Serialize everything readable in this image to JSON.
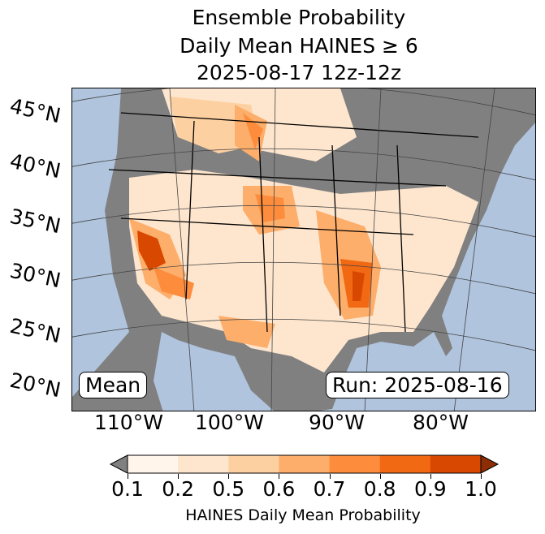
{
  "title": {
    "line1": "Ensemble Probability",
    "line2": "Daily Mean HAINES ≥ 6",
    "line3": "2025-08-17 12z-12z"
  },
  "map": {
    "lat_labels": [
      "45°N",
      "40°N",
      "35°N",
      "30°N",
      "25°N",
      "20°N"
    ],
    "lon_labels": [
      "110°W",
      "100°W",
      "90°W",
      "80°W"
    ],
    "mean_label": "Mean",
    "run_label": "Run: 2025-08-16",
    "colors": {
      "ocean": "#b0c4de",
      "land_below": "#808080"
    }
  },
  "colorbar": {
    "ticks": [
      "0.1",
      "0.2",
      "0.5",
      "0.6",
      "0.7",
      "0.8",
      "0.9",
      "1.0"
    ],
    "colors": [
      "#fff5eb",
      "#fee6ce",
      "#fdd0a2",
      "#fdae6b",
      "#fd8d3c",
      "#f16913",
      "#d94801"
    ],
    "under": "#808080",
    "over": "#8c2d04",
    "label": "HAINES Daily Mean Probability"
  }
}
